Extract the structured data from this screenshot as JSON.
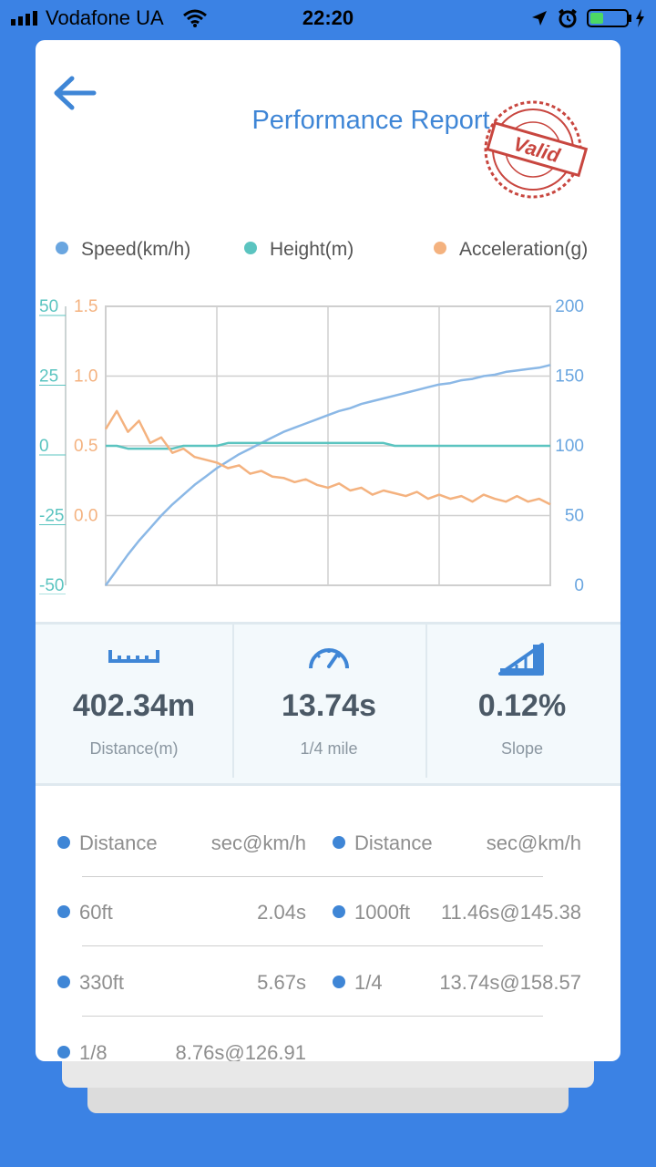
{
  "status_bar": {
    "carrier": "Vodafone UA",
    "time": "22:20"
  },
  "header": {
    "title": "Performance Report",
    "stamp_text": "Valid"
  },
  "legend": [
    {
      "label": "Speed(km/h)",
      "color": "#6aa6e0"
    },
    {
      "label": "Height(m)",
      "color": "#5bc4c0"
    },
    {
      "label": "Acceleration(g)",
      "color": "#f4b27f"
    }
  ],
  "chart_data": {
    "type": "line",
    "x": [
      0,
      1,
      2,
      3,
      4,
      5,
      6,
      7,
      8,
      9,
      10,
      11,
      12,
      13,
      14,
      15,
      16,
      17,
      18,
      19,
      20,
      21,
      22,
      23,
      24,
      25,
      26,
      27,
      28,
      29,
      30,
      31,
      32,
      33,
      34,
      35,
      36,
      37,
      38,
      39,
      40
    ],
    "axes": {
      "height": {
        "ticks": [
          "50",
          "25",
          "0",
          "-25",
          "-50"
        ],
        "range": [
          -50,
          50
        ]
      },
      "acceleration": {
        "ticks": [
          "1.5",
          "1.0",
          "0.5",
          "0.0"
        ],
        "range": [
          -0.5,
          1.5
        ]
      },
      "speed": {
        "ticks": [
          "200",
          "150",
          "100",
          "50",
          "0"
        ],
        "range": [
          0,
          200
        ]
      }
    },
    "series": [
      {
        "name": "Speed(km/h)",
        "axis": "speed",
        "values": [
          0,
          11,
          22,
          32,
          41,
          50,
          58,
          65,
          72,
          78,
          84,
          89,
          94,
          98,
          102,
          106,
          110,
          113,
          116,
          119,
          122,
          125,
          127,
          130,
          132,
          134,
          136,
          138,
          140,
          142,
          144,
          145,
          147,
          148,
          150,
          151,
          153,
          154,
          155,
          156,
          158
        ]
      },
      {
        "name": "Height(m)",
        "axis": "height",
        "values": [
          0,
          0,
          -1,
          -1,
          -1,
          -1,
          -1,
          0,
          0,
          0,
          0,
          1,
          1,
          1,
          1,
          1,
          1,
          1,
          1,
          1,
          1,
          1,
          1,
          1,
          1,
          1,
          0,
          0,
          0,
          0,
          0,
          0,
          0,
          0,
          0,
          0,
          0,
          0,
          0,
          0,
          0
        ]
      },
      {
        "name": "Acceleration(g)",
        "axis": "acceleration",
        "values": [
          0.62,
          0.75,
          0.6,
          0.68,
          0.52,
          0.56,
          0.45,
          0.48,
          0.42,
          0.4,
          0.38,
          0.34,
          0.36,
          0.3,
          0.32,
          0.28,
          0.27,
          0.24,
          0.26,
          0.22,
          0.2,
          0.23,
          0.18,
          0.2,
          0.15,
          0.18,
          0.16,
          0.14,
          0.17,
          0.12,
          0.15,
          0.12,
          0.14,
          0.1,
          0.15,
          0.12,
          0.1,
          0.14,
          0.1,
          0.12,
          0.08
        ]
      }
    ]
  },
  "stats": [
    {
      "value": "402.34m",
      "label": "Distance(m)",
      "icon": "ruler-icon"
    },
    {
      "value": "13.74s",
      "label": "1/4 mile",
      "icon": "speedometer-icon"
    },
    {
      "value": "0.12%",
      "label": "Slope",
      "icon": "slope-icon"
    }
  ],
  "table": {
    "header": {
      "left_label": "Distance",
      "left_unit": "sec@km/h",
      "right_label": "Distance",
      "right_unit": "sec@km/h"
    },
    "rows": [
      {
        "l_label": "60ft",
        "l_value": "2.04s",
        "r_label": "1000ft",
        "r_value": "11.46s@145.38"
      },
      {
        "l_label": "330ft",
        "l_value": "5.67s",
        "r_label": "1/4",
        "r_value": "13.74s@158.57"
      },
      {
        "l_label": "1/8",
        "l_value": "8.76s@126.91",
        "r_label": "",
        "r_value": ""
      }
    ]
  }
}
